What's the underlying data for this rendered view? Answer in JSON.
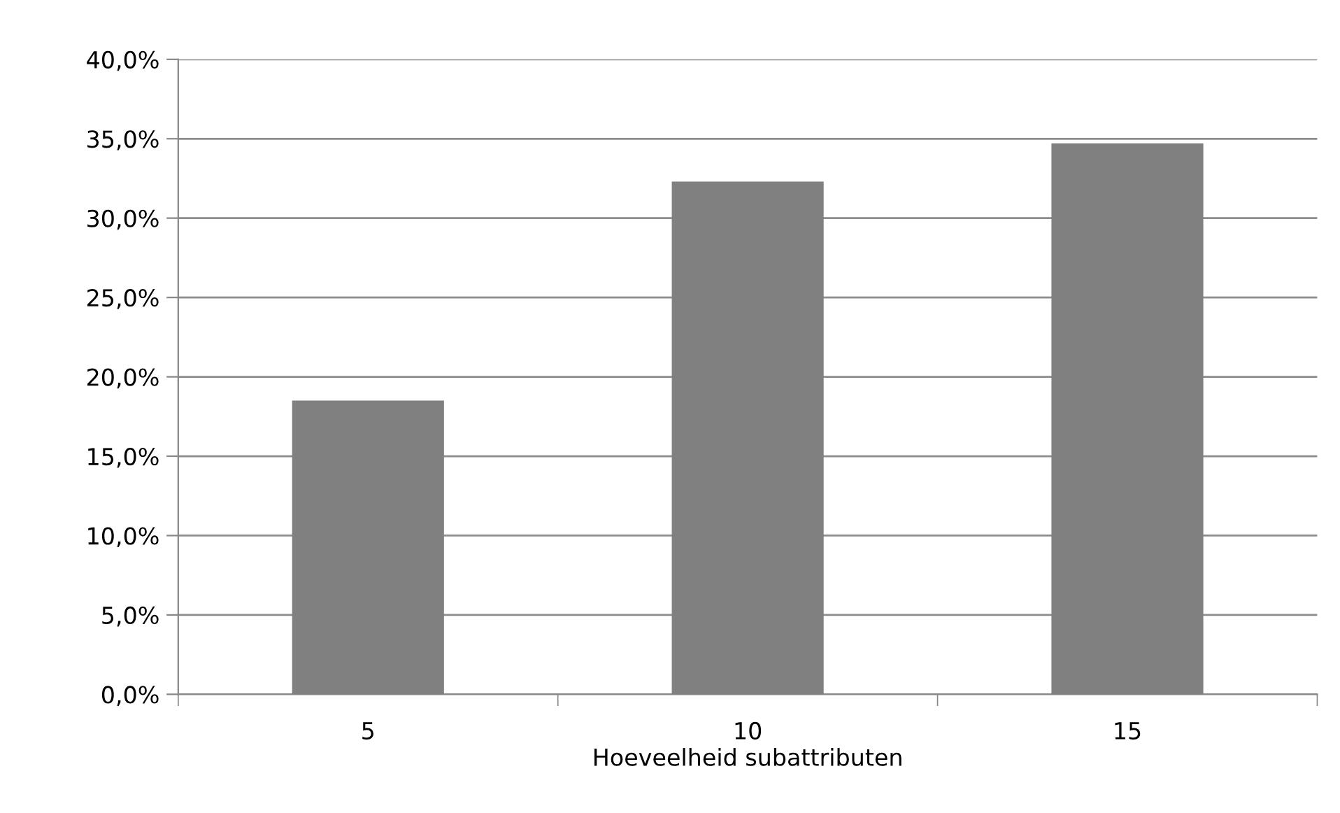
{
  "chart_data": {
    "type": "bar",
    "xlabel": "Hoeveelheid subattributen",
    "categories": [
      "5",
      "10",
      "15"
    ],
    "series": [
      {
        "color": "#808080",
        "values": [
          18.5,
          32.3,
          34.7
        ]
      }
    ],
    "ylim": [
      0,
      40
    ],
    "yticks": [
      {
        "value": 0,
        "label": "0,0%"
      },
      {
        "value": 5,
        "label": "5,0%"
      },
      {
        "value": 10,
        "label": "10,0%"
      },
      {
        "value": 15,
        "label": "15,0%"
      },
      {
        "value": 20,
        "label": "20,0%"
      },
      {
        "value": 25,
        "label": "25,0%"
      },
      {
        "value": 30,
        "label": "30,0%"
      },
      {
        "value": 35,
        "label": "35,0%"
      },
      {
        "value": 40,
        "label": "40,0%"
      }
    ],
    "grid": "y",
    "legend": false
  }
}
